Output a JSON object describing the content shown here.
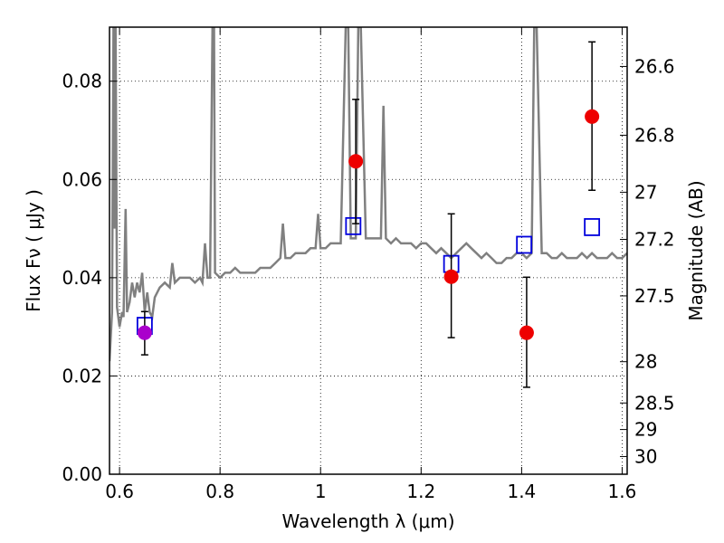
{
  "chart_data": {
    "type": "scatter",
    "xlabel": "Wavelength  λ (μm)",
    "ylabel": "Flux  Fν ( μJy )",
    "y2label": "Magnitude (AB)",
    "xlim": [
      0.58,
      1.61
    ],
    "ylim": [
      0.0,
      0.091
    ],
    "grid": true,
    "x_ticks": [
      0.6,
      0.8,
      1.0,
      1.2,
      1.4,
      1.6
    ],
    "x_tick_labels": [
      "0.6",
      "0.8",
      "1",
      "1.2",
      "1.4",
      "1.6"
    ],
    "y_ticks": [
      0.0,
      0.02,
      0.04,
      0.06,
      0.08
    ],
    "y_tick_labels": [
      "0.00",
      "0.02",
      "0.04",
      "0.06",
      "0.08"
    ],
    "y2_ticks": [
      {
        "label": "26.6",
        "flux": 0.083
      },
      {
        "label": "26.8",
        "flux": 0.069
      },
      {
        "label": "27",
        "flux": 0.0574
      },
      {
        "label": "27.2",
        "flux": 0.0478
      },
      {
        "label": "27.5",
        "flux": 0.0363
      },
      {
        "label": "28",
        "flux": 0.0229
      },
      {
        "label": "28.5",
        "flux": 0.0145
      },
      {
        "label": "29",
        "flux": 0.0091
      },
      {
        "label": "30",
        "flux": 0.0036
      }
    ],
    "colors": {
      "spectrum": "#808080",
      "observed": "#ee0000",
      "observed_first": "#aa00cc",
      "model": "#0000dd",
      "errorbar": "#000000"
    },
    "observed_points": [
      {
        "x": 0.65,
        "y": 0.0288,
        "err_lo": 0.0045,
        "err_hi": 0.0043
      },
      {
        "x": 1.07,
        "y": 0.0637,
        "err_lo": 0.0127,
        "err_hi": 0.0126
      },
      {
        "x": 1.26,
        "y": 0.0402,
        "err_lo": 0.0124,
        "err_hi": 0.0128
      },
      {
        "x": 1.41,
        "y": 0.0288,
        "err_lo": 0.0111,
        "err_hi": 0.0113
      },
      {
        "x": 1.54,
        "y": 0.0728,
        "err_lo": 0.015,
        "err_hi": 0.0152
      }
    ],
    "model_points": [
      {
        "x": 0.65,
        "y": 0.0302
      },
      {
        "x": 1.065,
        "y": 0.0505
      },
      {
        "x": 1.26,
        "y": 0.0428
      },
      {
        "x": 1.405,
        "y": 0.0467
      },
      {
        "x": 1.54,
        "y": 0.0503
      }
    ],
    "spectrum": [
      [
        0.58,
        0.023
      ],
      [
        0.585,
        0.033
      ],
      [
        0.588,
        0.091
      ],
      [
        0.59,
        0.05
      ],
      [
        0.592,
        0.091
      ],
      [
        0.595,
        0.034
      ],
      [
        0.6,
        0.03
      ],
      [
        0.605,
        0.033
      ],
      [
        0.608,
        0.032
      ],
      [
        0.612,
        0.054
      ],
      [
        0.615,
        0.033
      ],
      [
        0.62,
        0.035
      ],
      [
        0.625,
        0.039
      ],
      [
        0.63,
        0.036
      ],
      [
        0.635,
        0.039
      ],
      [
        0.64,
        0.037
      ],
      [
        0.645,
        0.041
      ],
      [
        0.65,
        0.033
      ],
      [
        0.655,
        0.037
      ],
      [
        0.66,
        0.033
      ],
      [
        0.665,
        0.032
      ],
      [
        0.67,
        0.036
      ],
      [
        0.68,
        0.038
      ],
      [
        0.69,
        0.039
      ],
      [
        0.7,
        0.038
      ],
      [
        0.705,
        0.043
      ],
      [
        0.71,
        0.039
      ],
      [
        0.72,
        0.04
      ],
      [
        0.73,
        0.04
      ],
      [
        0.74,
        0.04
      ],
      [
        0.75,
        0.039
      ],
      [
        0.76,
        0.04
      ],
      [
        0.765,
        0.039
      ],
      [
        0.77,
        0.047
      ],
      [
        0.775,
        0.04
      ],
      [
        0.78,
        0.04
      ],
      [
        0.785,
        0.091
      ],
      [
        0.788,
        0.091
      ],
      [
        0.79,
        0.041
      ],
      [
        0.8,
        0.04
      ],
      [
        0.81,
        0.041
      ],
      [
        0.82,
        0.041
      ],
      [
        0.83,
        0.042
      ],
      [
        0.84,
        0.041
      ],
      [
        0.85,
        0.041
      ],
      [
        0.86,
        0.041
      ],
      [
        0.87,
        0.041
      ],
      [
        0.88,
        0.042
      ],
      [
        0.89,
        0.042
      ],
      [
        0.9,
        0.042
      ],
      [
        0.91,
        0.043
      ],
      [
        0.92,
        0.044
      ],
      [
        0.925,
        0.051
      ],
      [
        0.93,
        0.044
      ],
      [
        0.94,
        0.044
      ],
      [
        0.95,
        0.045
      ],
      [
        0.96,
        0.045
      ],
      [
        0.97,
        0.045
      ],
      [
        0.98,
        0.046
      ],
      [
        0.99,
        0.046
      ],
      [
        0.995,
        0.053
      ],
      [
        1.0,
        0.046
      ],
      [
        1.01,
        0.046
      ],
      [
        1.02,
        0.047
      ],
      [
        1.03,
        0.047
      ],
      [
        1.04,
        0.047
      ],
      [
        1.05,
        0.091
      ],
      [
        1.055,
        0.091
      ],
      [
        1.06,
        0.048
      ],
      [
        1.07,
        0.048
      ],
      [
        1.075,
        0.091
      ],
      [
        1.08,
        0.091
      ],
      [
        1.09,
        0.048
      ],
      [
        1.1,
        0.048
      ],
      [
        1.11,
        0.048
      ],
      [
        1.12,
        0.048
      ],
      [
        1.125,
        0.075
      ],
      [
        1.13,
        0.048
      ],
      [
        1.14,
        0.047
      ],
      [
        1.15,
        0.048
      ],
      [
        1.16,
        0.047
      ],
      [
        1.17,
        0.047
      ],
      [
        1.18,
        0.047
      ],
      [
        1.19,
        0.046
      ],
      [
        1.2,
        0.047
      ],
      [
        1.21,
        0.047
      ],
      [
        1.22,
        0.046
      ],
      [
        1.23,
        0.045
      ],
      [
        1.24,
        0.046
      ],
      [
        1.25,
        0.045
      ],
      [
        1.26,
        0.044
      ],
      [
        1.27,
        0.045
      ],
      [
        1.28,
        0.046
      ],
      [
        1.29,
        0.047
      ],
      [
        1.3,
        0.046
      ],
      [
        1.31,
        0.045
      ],
      [
        1.32,
        0.044
      ],
      [
        1.33,
        0.045
      ],
      [
        1.34,
        0.044
      ],
      [
        1.35,
        0.043
      ],
      [
        1.36,
        0.043
      ],
      [
        1.37,
        0.044
      ],
      [
        1.38,
        0.044
      ],
      [
        1.39,
        0.045
      ],
      [
        1.4,
        0.045
      ],
      [
        1.41,
        0.044
      ],
      [
        1.42,
        0.045
      ],
      [
        1.425,
        0.091
      ],
      [
        1.43,
        0.091
      ],
      [
        1.44,
        0.045
      ],
      [
        1.45,
        0.045
      ],
      [
        1.46,
        0.044
      ],
      [
        1.47,
        0.044
      ],
      [
        1.48,
        0.045
      ],
      [
        1.49,
        0.044
      ],
      [
        1.5,
        0.044
      ],
      [
        1.51,
        0.044
      ],
      [
        1.52,
        0.045
      ],
      [
        1.53,
        0.044
      ],
      [
        1.54,
        0.045
      ],
      [
        1.55,
        0.044
      ],
      [
        1.56,
        0.044
      ],
      [
        1.57,
        0.044
      ],
      [
        1.58,
        0.045
      ],
      [
        1.59,
        0.044
      ],
      [
        1.6,
        0.044
      ],
      [
        1.61,
        0.045
      ]
    ]
  }
}
